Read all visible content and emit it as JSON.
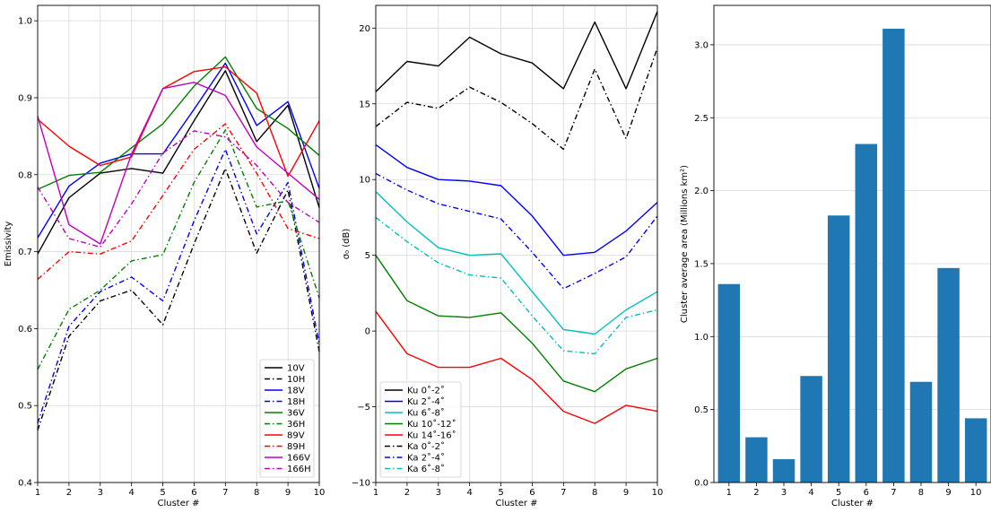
{
  "chart_data": [
    {
      "type": "line",
      "title": "",
      "xlabel": "Cluster #",
      "ylabel": "Emissivity",
      "x": [
        1,
        2,
        3,
        4,
        5,
        6,
        7,
        8,
        9,
        10
      ],
      "xlim": [
        1,
        10
      ],
      "ylim": [
        0.4,
        1.02
      ],
      "xticks": [
        "1",
        "2",
        "3",
        "4",
        "5",
        "6",
        "7",
        "8",
        "9",
        "10"
      ],
      "yticks": [
        "0.4",
        "0.5",
        "0.6",
        "0.7",
        "0.8",
        "0.9",
        "1.0"
      ],
      "grid": true,
      "legend_position": "lower-right",
      "series": [
        {
          "name": "10V",
          "color": "#000000",
          "dash": "solid",
          "values": [
            0.697,
            0.77,
            0.802,
            0.808,
            0.802,
            0.87,
            0.935,
            0.843,
            0.89,
            0.757
          ]
        },
        {
          "name": "10H",
          "color": "#000000",
          "dash": "dashdot",
          "values": [
            0.468,
            0.59,
            0.636,
            0.65,
            0.605,
            0.71,
            0.808,
            0.698,
            0.78,
            0.57
          ]
        },
        {
          "name": "18V",
          "color": "#0000ff",
          "dash": "solid",
          "values": [
            0.718,
            0.785,
            0.815,
            0.827,
            0.827,
            0.885,
            0.945,
            0.864,
            0.895,
            0.782
          ]
        },
        {
          "name": "18H",
          "color": "#0000ff",
          "dash": "dashdot",
          "values": [
            0.477,
            0.603,
            0.648,
            0.667,
            0.636,
            0.74,
            0.833,
            0.723,
            0.79,
            0.58
          ]
        },
        {
          "name": "36V",
          "color": "#008000",
          "dash": "solid",
          "values": [
            0.781,
            0.799,
            0.803,
            0.835,
            0.866,
            0.915,
            0.953,
            0.886,
            0.86,
            0.825
          ]
        },
        {
          "name": "36H",
          "color": "#008000",
          "dash": "dashdot",
          "values": [
            0.547,
            0.625,
            0.65,
            0.688,
            0.696,
            0.79,
            0.858,
            0.758,
            0.766,
            0.64
          ]
        },
        {
          "name": "89V",
          "color": "#ff0000",
          "dash": "solid",
          "values": [
            0.872,
            0.837,
            0.812,
            0.823,
            0.912,
            0.934,
            0.94,
            0.906,
            0.798,
            0.87
          ]
        },
        {
          "name": "89H",
          "color": "#ff0000",
          "dash": "dashdot",
          "values": [
            0.664,
            0.7,
            0.697,
            0.714,
            0.773,
            0.833,
            0.866,
            0.802,
            0.73,
            0.717
          ]
        },
        {
          "name": "166V",
          "color": "#c000c0",
          "dash": "solid",
          "values": [
            0.876,
            0.735,
            0.71,
            0.827,
            0.912,
            0.92,
            0.903,
            0.836,
            0.802,
            0.768
          ]
        },
        {
          "name": "166H",
          "color": "#c000c0",
          "dash": "dashdot",
          "values": [
            0.784,
            0.717,
            0.706,
            0.762,
            0.828,
            0.857,
            0.849,
            0.812,
            0.764,
            0.738
          ]
        }
      ]
    },
    {
      "type": "line",
      "title": "",
      "xlabel": "Cluster #",
      "ylabel": "σ₀ (dB)",
      "x": [
        1,
        2,
        3,
        4,
        5,
        6,
        7,
        8,
        9,
        10
      ],
      "xlim": [
        1,
        10
      ],
      "ylim": [
        -10,
        21.5
      ],
      "xticks": [
        "1",
        "2",
        "3",
        "4",
        "5",
        "6",
        "7",
        "8",
        "9",
        "10"
      ],
      "yticks": [
        "−10",
        "−5",
        "0",
        "5",
        "10",
        "15",
        "20"
      ],
      "grid": true,
      "legend_position": "lower-left",
      "series": [
        {
          "name": "Ku 0˚-2˚",
          "color": "#000000",
          "dash": "solid",
          "values": [
            15.8,
            17.8,
            17.5,
            19.4,
            18.3,
            17.7,
            16.0,
            20.4,
            16.0,
            21.1
          ]
        },
        {
          "name": "Ku 2˚-4˚",
          "color": "#0000ff",
          "dash": "solid",
          "values": [
            12.3,
            10.8,
            10.0,
            9.9,
            9.6,
            7.6,
            5.0,
            5.2,
            6.6,
            8.5
          ]
        },
        {
          "name": "Ku 6˚-8˚",
          "color": "#00bfbf",
          "dash": "solid",
          "values": [
            9.2,
            7.2,
            5.5,
            5.0,
            5.1,
            2.6,
            0.1,
            -0.2,
            1.4,
            2.6
          ]
        },
        {
          "name": "Ku 10˚-12˚",
          "color": "#008000",
          "dash": "solid",
          "values": [
            5.0,
            2.0,
            1.0,
            0.9,
            1.2,
            -0.8,
            -3.3,
            -4.0,
            -2.5,
            -1.8
          ]
        },
        {
          "name": "Ku 14˚-16˚",
          "color": "#ff0000",
          "dash": "solid",
          "values": [
            1.3,
            -1.5,
            -2.4,
            -2.4,
            -1.8,
            -3.2,
            -5.3,
            -6.1,
            -4.9,
            -5.3
          ]
        },
        {
          "name": "Ka 0˚-2˚",
          "color": "#000000",
          "dash": "dashdot",
          "values": [
            13.5,
            15.1,
            14.7,
            16.1,
            15.1,
            13.7,
            12.0,
            17.3,
            12.7,
            18.7
          ]
        },
        {
          "name": "Ka 2˚-4˚",
          "color": "#0000ff",
          "dash": "dashdot",
          "values": [
            10.4,
            9.3,
            8.4,
            7.9,
            7.4,
            5.2,
            2.8,
            3.8,
            4.9,
            7.6
          ]
        },
        {
          "name": "Ka 6˚-8˚",
          "color": "#00bfbf",
          "dash": "dashdot",
          "values": [
            7.5,
            5.9,
            4.5,
            3.7,
            3.5,
            1.0,
            -1.3,
            -1.5,
            0.9,
            1.4
          ]
        }
      ]
    },
    {
      "type": "bar",
      "title": "",
      "xlabel": "Cluster #",
      "ylabel": "Cluster average area (Millions km²)",
      "categories": [
        "1",
        "2",
        "3",
        "4",
        "5",
        "6",
        "7",
        "8",
        "9",
        "10"
      ],
      "values": [
        1.36,
        0.31,
        0.16,
        0.73,
        1.83,
        2.32,
        3.11,
        0.69,
        1.47,
        0.44
      ],
      "ylim": [
        0,
        3.27
      ],
      "yticks": [
        "0.0",
        "0.5",
        "1.0",
        "1.5",
        "2.0",
        "2.5",
        "3.0"
      ],
      "grid": true,
      "color": "#1f77b4"
    }
  ]
}
